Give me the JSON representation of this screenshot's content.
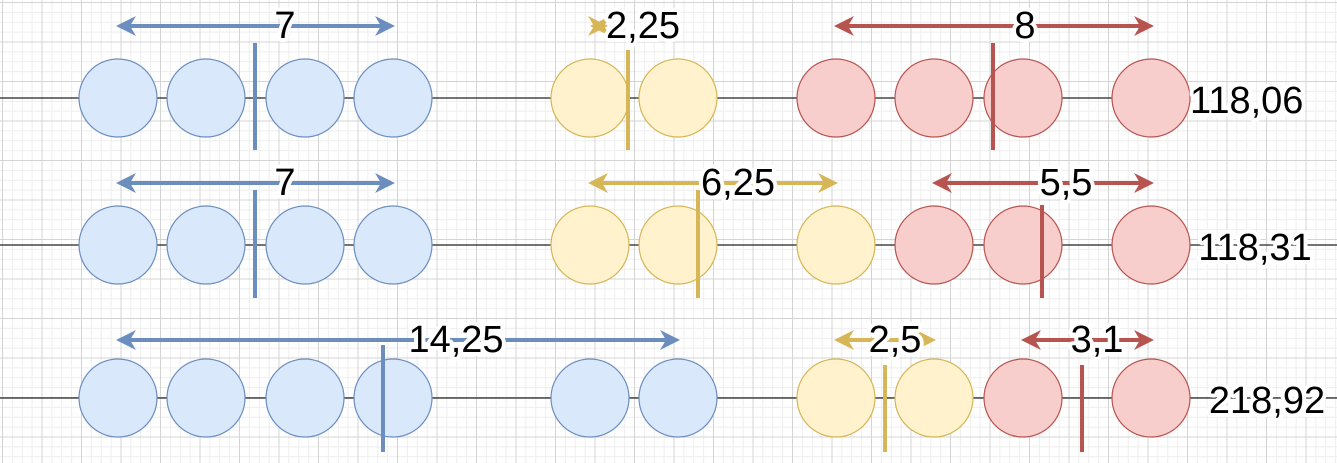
{
  "colors": {
    "blue": {
      "fill": "#dae8fc",
      "stroke": "#6c8ebf",
      "accent": "#6c8ebf"
    },
    "yellow": {
      "fill": "#fff2cc",
      "stroke": "#d6b656",
      "accent": "#d6b656"
    },
    "red": {
      "fill": "#f8cecc",
      "stroke": "#b85450",
      "accent": "#b85450"
    }
  },
  "rows": [
    {
      "total": "118,06",
      "circles": [
        "blue",
        "blue",
        "blue",
        "blue",
        "yellow",
        "yellow",
        "red",
        "red",
        "red",
        "red"
      ],
      "spans": [
        {
          "color": "blue",
          "label": "7"
        },
        {
          "color": "yellow",
          "label": "2,25"
        },
        {
          "color": "red",
          "label": "8"
        }
      ]
    },
    {
      "total": "118,31",
      "circles": [
        "blue",
        "blue",
        "blue",
        "blue",
        "yellow",
        "yellow",
        "yellow",
        "red",
        "red",
        "red"
      ],
      "spans": [
        {
          "color": "blue",
          "label": "7"
        },
        {
          "color": "yellow",
          "label": "6,25"
        },
        {
          "color": "red",
          "label": "5,5"
        }
      ]
    },
    {
      "total": "218,92",
      "circles": [
        "blue",
        "blue",
        "blue",
        "blue",
        "blue",
        "blue",
        "yellow",
        "yellow",
        "red",
        "red"
      ],
      "spans": [
        {
          "color": "blue",
          "label": "14,25"
        },
        {
          "color": "yellow",
          "label": "2,5"
        },
        {
          "color": "red",
          "label": "3,1"
        }
      ]
    }
  ]
}
